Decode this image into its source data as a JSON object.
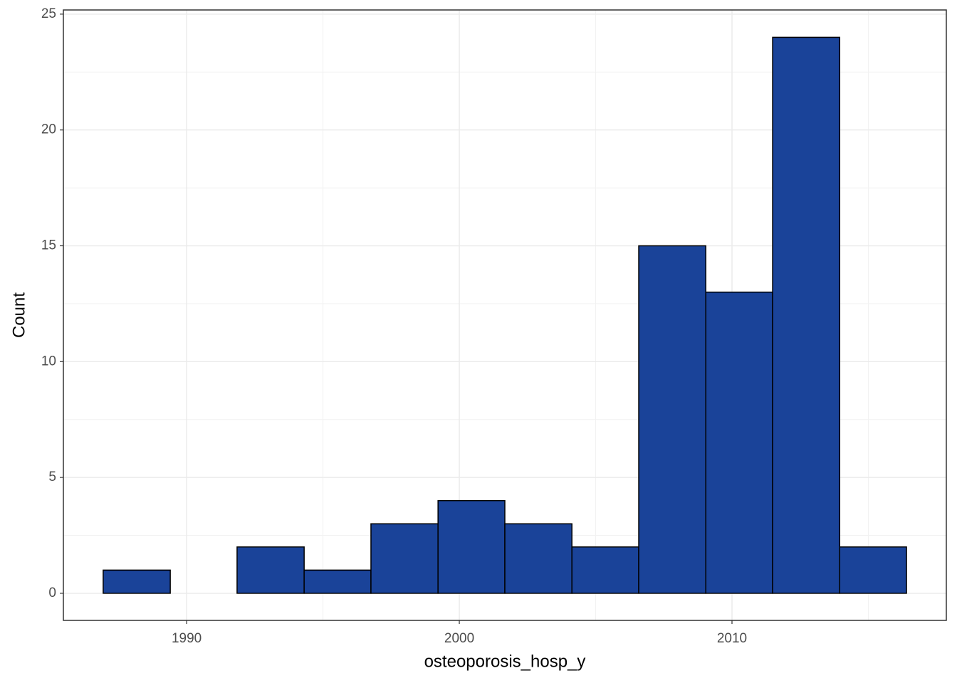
{
  "chart_data": {
    "type": "histogram",
    "x_label": "osteoporosis_hosp_y",
    "y_label": "Count",
    "bins": [
      1986.94,
      1989.4,
      1991.85,
      1994.31,
      1996.76,
      1999.22,
      2001.67,
      2004.13,
      2006.58,
      2009.04,
      2011.49,
      2013.95,
      2016.4
    ],
    "counts": [
      1,
      0,
      2,
      1,
      3,
      4,
      3,
      2,
      15,
      13,
      24,
      2
    ],
    "color": "#1a4399",
    "edge_color": "#000000",
    "xlim": [
      1985.48,
      2017.86
    ],
    "xticks": [
      1990,
      2000,
      2010
    ],
    "ylim": [
      -1.17,
      25.18
    ],
    "yticks": [
      0,
      5,
      10,
      15,
      20,
      25
    ],
    "grid": true
  }
}
